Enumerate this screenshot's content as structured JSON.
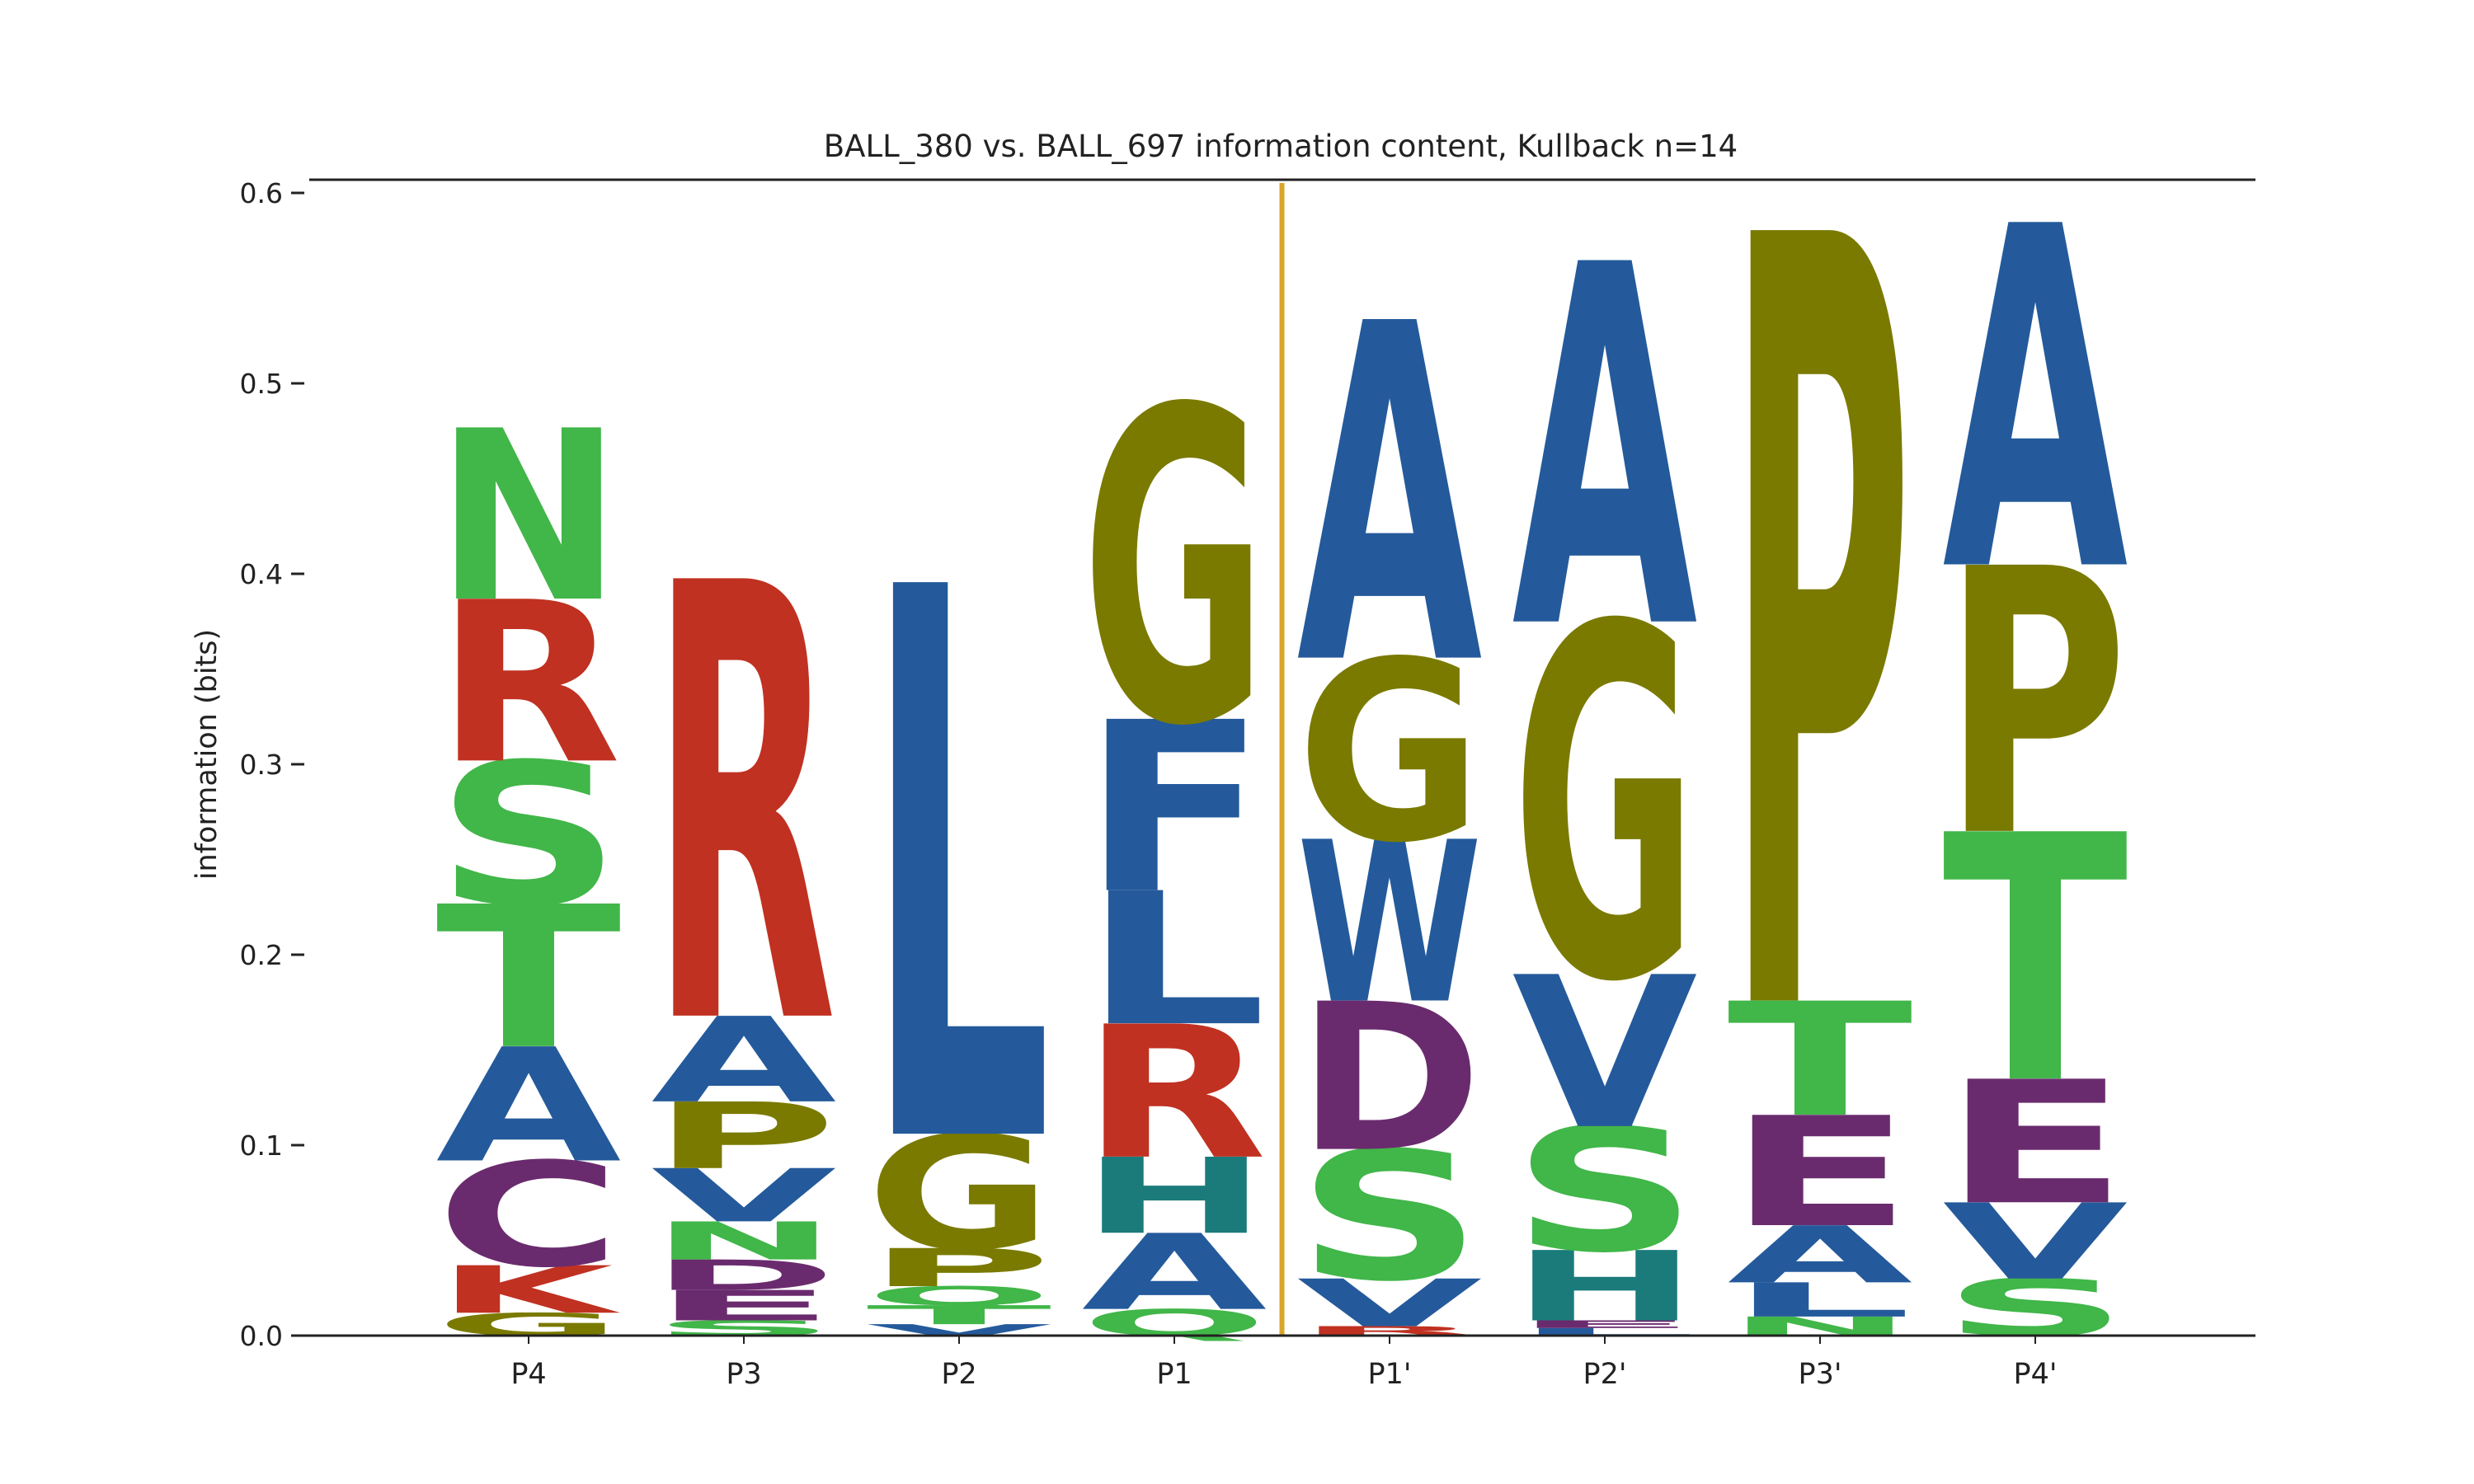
{
  "chart_data": {
    "type": "sequence-logo",
    "title": "BALL_380 vs. BALL_697 information content, Kullback n=14",
    "ylabel": "information (bits)",
    "xlabel": "",
    "ylim": [
      0,
      0.61
    ],
    "yticks": [
      "0.0",
      "0.1",
      "0.2",
      "0.3",
      "0.4",
      "0.5",
      "0.6"
    ],
    "cleavage_site_after": "P1",
    "colors": {
      "green": "#41b649",
      "red": "#c03121",
      "blue": "#245a9b",
      "olive": "#7a7a00",
      "purple": "#6a2b6e",
      "teal": "#1b7b7b",
      "divider": "#d9a52a"
    },
    "positions": [
      {
        "label": "P4",
        "letters": [
          {
            "letter": "G",
            "bits": 0.012,
            "color": "olive"
          },
          {
            "letter": "K",
            "bits": 0.025,
            "color": "red"
          },
          {
            "letter": "C",
            "bits": 0.055,
            "color": "purple"
          },
          {
            "letter": "A",
            "bits": 0.06,
            "color": "blue"
          },
          {
            "letter": "T",
            "bits": 0.075,
            "color": "green"
          },
          {
            "letter": "S",
            "bits": 0.075,
            "color": "green"
          },
          {
            "letter": "R",
            "bits": 0.085,
            "color": "red"
          },
          {
            "letter": "N",
            "bits": 0.09,
            "color": "green"
          }
        ]
      },
      {
        "label": "P3",
        "letters": [
          {
            "letter": "S",
            "bits": 0.008,
            "color": "green"
          },
          {
            "letter": "E",
            "bits": 0.016,
            "color": "purple"
          },
          {
            "letter": "D",
            "bits": 0.016,
            "color": "purple"
          },
          {
            "letter": "N",
            "bits": 0.02,
            "color": "green"
          },
          {
            "letter": "V",
            "bits": 0.028,
            "color": "blue"
          },
          {
            "letter": "P",
            "bits": 0.035,
            "color": "olive"
          },
          {
            "letter": "A",
            "bits": 0.045,
            "color": "blue"
          },
          {
            "letter": "R",
            "bits": 0.23,
            "color": "red"
          }
        ]
      },
      {
        "label": "P2",
        "letters": [
          {
            "letter": "V",
            "bits": 0.006,
            "color": "blue"
          },
          {
            "letter": "T",
            "bits": 0.01,
            "color": "green"
          },
          {
            "letter": "Q",
            "bits": 0.01,
            "color": "green"
          },
          {
            "letter": "P",
            "bits": 0.02,
            "color": "olive"
          },
          {
            "letter": "G",
            "bits": 0.06,
            "color": "olive"
          },
          {
            "letter": "L",
            "bits": 0.29,
            "color": "blue"
          }
        ]
      },
      {
        "label": "P1",
        "letters": [
          {
            "letter": "Q",
            "bits": 0.014,
            "color": "green"
          },
          {
            "letter": "A",
            "bits": 0.04,
            "color": "blue"
          },
          {
            "letter": "H",
            "bits": 0.04,
            "color": "teal"
          },
          {
            "letter": "R",
            "bits": 0.07,
            "color": "red"
          },
          {
            "letter": "L",
            "bits": 0.07,
            "color": "blue"
          },
          {
            "letter": "F",
            "bits": 0.09,
            "color": "blue"
          },
          {
            "letter": "G",
            "bits": 0.165,
            "color": "olive"
          }
        ]
      },
      {
        "label": "P1'",
        "letters": [
          {
            "letter": "R",
            "bits": 0.005,
            "color": "red"
          },
          {
            "letter": "V",
            "bits": 0.025,
            "color": "blue"
          },
          {
            "letter": "S",
            "bits": 0.068,
            "color": "green"
          },
          {
            "letter": "D",
            "bits": 0.078,
            "color": "purple"
          },
          {
            "letter": "W",
            "bits": 0.085,
            "color": "blue"
          },
          {
            "letter": "G",
            "bits": 0.095,
            "color": "olive"
          },
          {
            "letter": "A",
            "bits": 0.178,
            "color": "blue"
          }
        ]
      },
      {
        "label": "P2'",
        "letters": [
          {
            "letter": "L",
            "bits": 0.004,
            "color": "blue"
          },
          {
            "letter": "E",
            "bits": 0.004,
            "color": "purple"
          },
          {
            "letter": "H",
            "bits": 0.037,
            "color": "teal"
          },
          {
            "letter": "S",
            "bits": 0.065,
            "color": "green"
          },
          {
            "letter": "V",
            "bits": 0.08,
            "color": "blue"
          },
          {
            "letter": "G",
            "bits": 0.185,
            "color": "olive"
          },
          {
            "letter": "A",
            "bits": 0.19,
            "color": "blue"
          }
        ]
      },
      {
        "label": "P3'",
        "letters": [
          {
            "letter": "N",
            "bits": 0.01,
            "color": "green"
          },
          {
            "letter": "L",
            "bits": 0.018,
            "color": "blue"
          },
          {
            "letter": "A",
            "bits": 0.03,
            "color": "blue"
          },
          {
            "letter": "E",
            "bits": 0.058,
            "color": "purple"
          },
          {
            "letter": "T",
            "bits": 0.06,
            "color": "green"
          },
          {
            "letter": "P",
            "bits": 0.405,
            "color": "olive"
          }
        ]
      },
      {
        "label": "P4'",
        "letters": [
          {
            "letter": "S",
            "bits": 0.03,
            "color": "green"
          },
          {
            "letter": "V",
            "bits": 0.04,
            "color": "blue"
          },
          {
            "letter": "E",
            "bits": 0.065,
            "color": "purple"
          },
          {
            "letter": "T",
            "bits": 0.13,
            "color": "green"
          },
          {
            "letter": "P",
            "bits": 0.14,
            "color": "olive"
          },
          {
            "letter": "A",
            "bits": 0.18,
            "color": "blue"
          }
        ]
      }
    ]
  }
}
